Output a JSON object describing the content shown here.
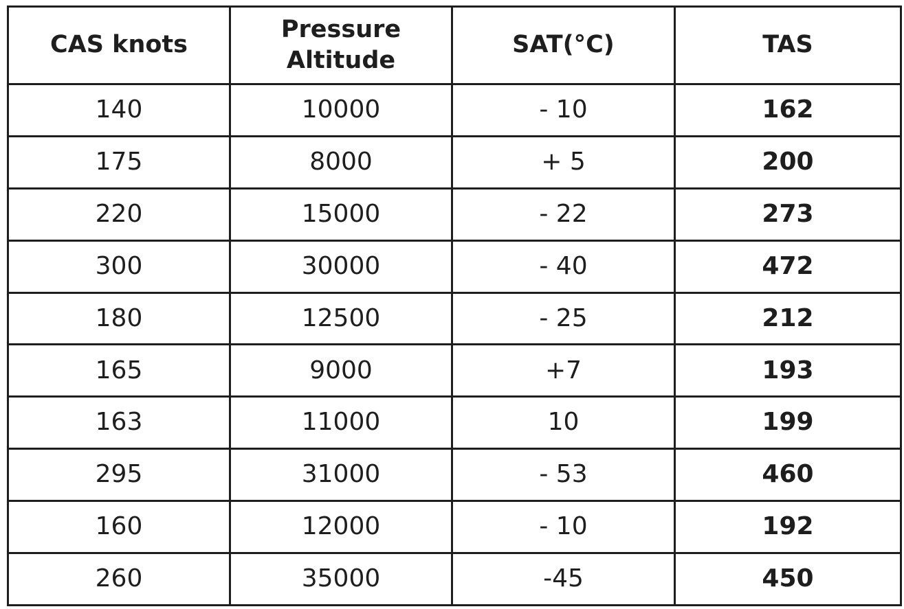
{
  "table": {
    "headers": {
      "cas": "CAS knots",
      "pressure_line1": "Pressure",
      "pressure_line2": "Altitude",
      "sat": "SAT(°C)",
      "tas": "TAS"
    },
    "rows": [
      {
        "cas": "140",
        "alt": "10000",
        "sat": "- 10",
        "tas": "162"
      },
      {
        "cas": "175",
        "alt": "8000",
        "sat": "+ 5",
        "tas": "200"
      },
      {
        "cas": "220",
        "alt": "15000",
        "sat": "- 22",
        "tas": "273"
      },
      {
        "cas": "300",
        "alt": "30000",
        "sat": "- 40",
        "tas": "472"
      },
      {
        "cas": "180",
        "alt": "12500",
        "sat": "- 25",
        "tas": "212"
      },
      {
        "cas": "165",
        "alt": "9000",
        "sat": "+7",
        "tas": "193"
      },
      {
        "cas": "163",
        "alt": "11000",
        "sat": "10",
        "tas": "199"
      },
      {
        "cas": "295",
        "alt": "31000",
        "sat": "- 53",
        "tas": "460"
      },
      {
        "cas": "160",
        "alt": "12000",
        "sat": "- 10",
        "tas": "192"
      },
      {
        "cas": "260",
        "alt": "35000",
        "sat": "-45",
        "tas": "450"
      }
    ]
  }
}
